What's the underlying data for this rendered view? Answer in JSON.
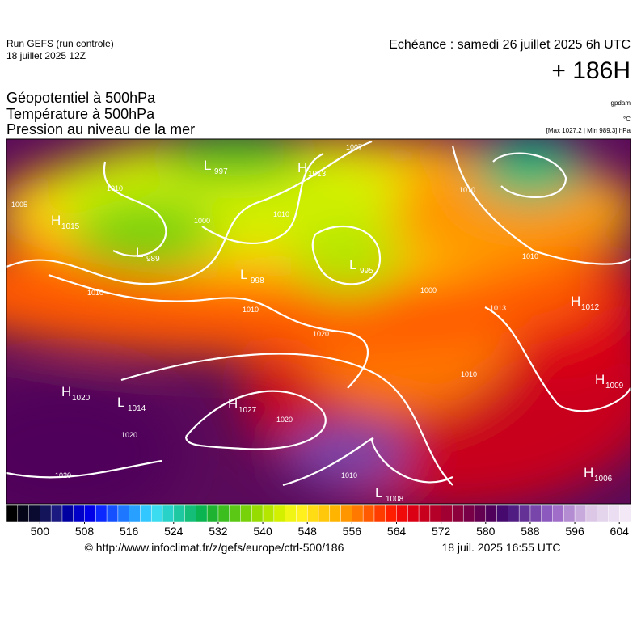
{
  "header": {
    "run": "Run GEFS (run controle)",
    "run_date": "18 juillet 2025 12Z",
    "echeance": "Echéance : samedi 26 juillet 2025 6h UTC",
    "lead": "+ 186H"
  },
  "titles": [
    "Géopotentiel à 500hPa",
    "Température à 500hPa",
    "Pression au niveau de la mer"
  ],
  "units": {
    "geopotential": "gpdam",
    "temperature": "°C",
    "pressure": "[Max 1027.2 | Min 989.3] hPa"
  },
  "map": {
    "centers": [
      {
        "type": "H",
        "value": "1015"
      },
      {
        "type": "L",
        "value": "989"
      },
      {
        "type": "L",
        "value": "997"
      },
      {
        "type": "H",
        "value": "1013"
      },
      {
        "type": "L",
        "value": "998"
      },
      {
        "type": "L",
        "value": "995"
      },
      {
        "type": "H",
        "value": "1012"
      },
      {
        "type": "H",
        "value": "1020"
      },
      {
        "type": "L",
        "value": "1014"
      },
      {
        "type": "H",
        "value": "1027"
      },
      {
        "type": "H",
        "value": "1009"
      },
      {
        "type": "H",
        "value": "1006"
      },
      {
        "type": "L",
        "value": "1008"
      }
    ],
    "isobar_labels": [
      "1005",
      "1010",
      "1000",
      "1010",
      "1007",
      "1010",
      "1010",
      "1010",
      "1010",
      "1020",
      "1013",
      "1010",
      "1020",
      "1020",
      "1020",
      "1010",
      "1000"
    ]
  },
  "colorbar": {
    "range": [
      494,
      606
    ],
    "ticks": [
      500,
      508,
      516,
      524,
      532,
      540,
      548,
      556,
      564,
      572,
      580,
      588,
      596,
      604
    ],
    "colors": [
      "#000000",
      "#050518",
      "#0a0a30",
      "#14145a",
      "#1a1a80",
      "#0000a0",
      "#0000c8",
      "#0000e6",
      "#0a28ff",
      "#1450ff",
      "#1e78ff",
      "#28a0ff",
      "#32c8ff",
      "#3cdcf0",
      "#28d2c8",
      "#1ec8a0",
      "#14be78",
      "#0ab450",
      "#1eb432",
      "#3cbe1e",
      "#5ac814",
      "#78d20a",
      "#96dc00",
      "#b4e600",
      "#d2f000",
      "#f0f514",
      "#fff01e",
      "#ffdc14",
      "#ffc80a",
      "#ffb400",
      "#ff9600",
      "#ff7800",
      "#ff5a00",
      "#ff3c00",
      "#ff1e00",
      "#f00a0a",
      "#dc0014",
      "#c8001e",
      "#b40028",
      "#a00032",
      "#8c003c",
      "#780046",
      "#640050",
      "#50005a",
      "#460a6e",
      "#501e82",
      "#643296",
      "#7846aa",
      "#8c5abe",
      "#a06ec8",
      "#b48cd2",
      "#c8aadc",
      "#dcc8e6",
      "#e4d4ec",
      "#ecdef2",
      "#f2e8f6"
    ]
  },
  "footer": {
    "url": "© http://www.infoclimat.fr/z/gefs/europe/ctrl-500/186",
    "timestamp": "18 juil. 2025 16:55 UTC"
  }
}
